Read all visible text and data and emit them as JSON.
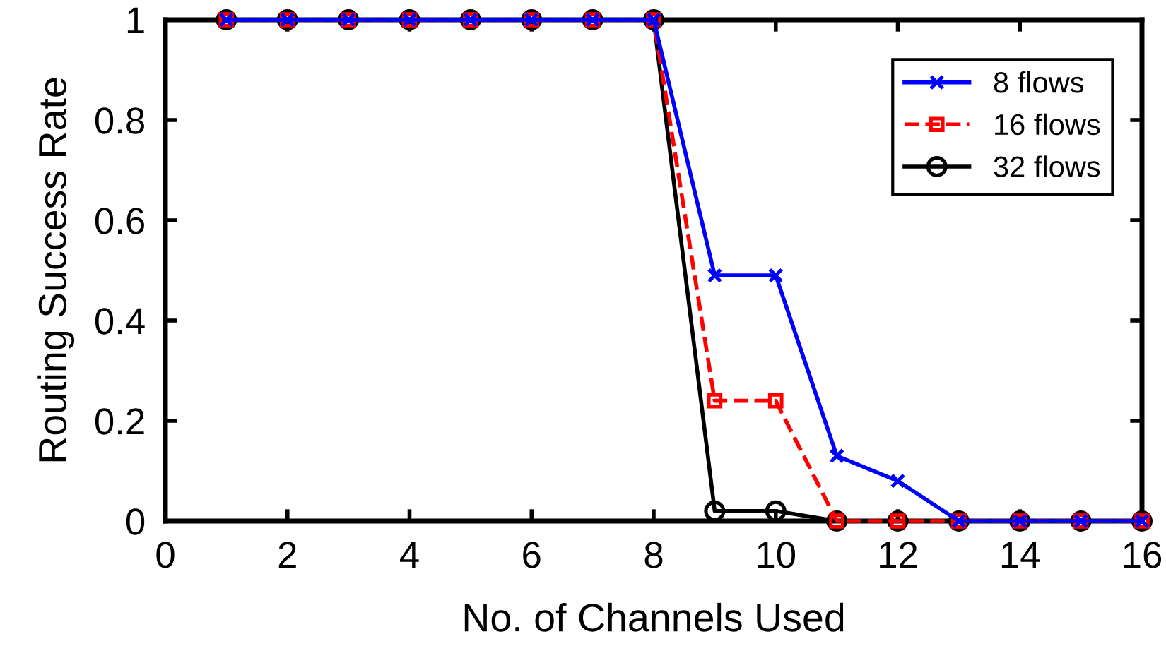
{
  "chart_data": {
    "type": "line",
    "xlabel": "No. of Channels Used",
    "ylabel": "Routing Success Rate",
    "x": [
      1,
      2,
      3,
      4,
      5,
      6,
      7,
      8,
      9,
      10,
      11,
      12,
      13,
      14,
      15,
      16
    ],
    "series": [
      {
        "name": "8 flows",
        "color": "#0000ff",
        "marker": "cross",
        "line_style": "solid",
        "values": [
          1,
          1,
          1,
          1,
          1,
          1,
          1,
          1,
          0.49,
          0.49,
          0.13,
          0.08,
          0,
          0,
          0,
          0
        ]
      },
      {
        "name": "16 flows",
        "color": "#ff0000",
        "marker": "square",
        "line_style": "dashed",
        "values": [
          1,
          1,
          1,
          1,
          1,
          1,
          1,
          1,
          0.24,
          0.24,
          0,
          0,
          0,
          0,
          0,
          0
        ]
      },
      {
        "name": "32 flows",
        "color": "#000000",
        "marker": "circle",
        "line_style": "solid",
        "values": [
          1,
          1,
          1,
          1,
          1,
          1,
          1,
          1,
          0.02,
          0.02,
          0,
          0,
          0,
          0,
          0,
          0
        ]
      }
    ],
    "xlim": [
      0,
      16
    ],
    "xticks": [
      0,
      2,
      4,
      6,
      8,
      10,
      12,
      14,
      16
    ],
    "ylim": [
      0,
      1
    ],
    "yticks": [
      0,
      0.2,
      0.4,
      0.6,
      0.8,
      1
    ],
    "grid": false,
    "legend": "top right"
  }
}
